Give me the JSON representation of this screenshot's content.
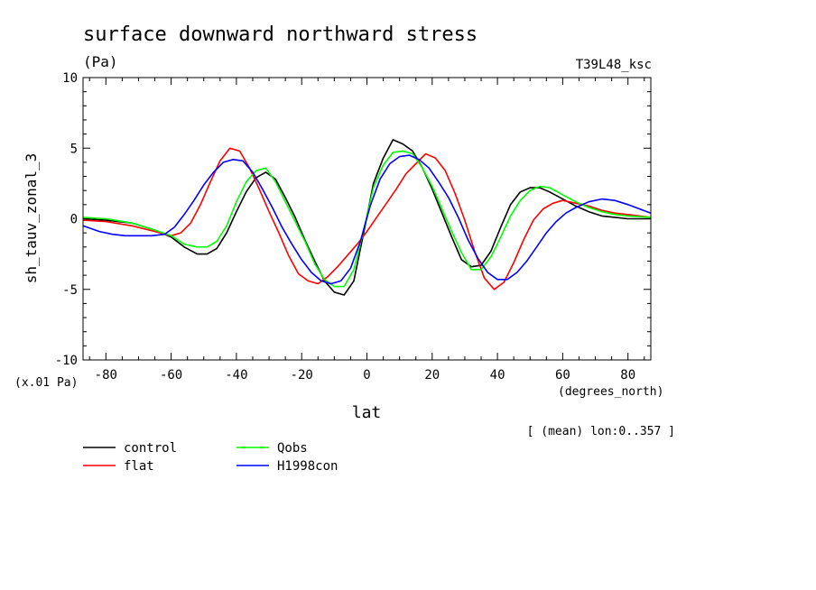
{
  "chart_data": {
    "type": "line",
    "title": "surface downward northward stress",
    "subtitle": "(Pa)",
    "run_label": "T39L48_ksc",
    "xlabel": "lat",
    "x_units": "(degrees_north)",
    "ylabel": "sh_tauv_zonal_3",
    "y_units": "(x.01 Pa)",
    "averaging_note": "[ (mean) lon:0..357 ]",
    "xlim": [
      -87,
      87
    ],
    "ylim": [
      -10,
      10
    ],
    "x_ticks": [
      -80,
      -60,
      -40,
      -20,
      0,
      20,
      40,
      60,
      80
    ],
    "y_ticks": [
      -10,
      -5,
      0,
      5,
      10
    ],
    "x_tick_labels": [
      "-80",
      "-60",
      "-40",
      "-20",
      "0",
      "20",
      "40",
      "60",
      "80"
    ],
    "y_tick_labels": [
      "-10",
      "-5",
      "0",
      "5",
      "10"
    ],
    "grid": false,
    "legend_placement": "bottom",
    "series": [
      {
        "name": "control",
        "color": "#000000",
        "x": [
          -87,
          -80,
          -72,
          -65,
          -60,
          -56,
          -52,
          -49,
          -46,
          -43,
          -40,
          -37,
          -34,
          -31,
          -28,
          -25,
          -22,
          -19,
          -16,
          -13,
          -10,
          -7,
          -4,
          -1,
          2,
          5,
          8,
          11,
          14,
          17,
          20,
          23,
          26,
          29,
          32,
          35,
          38,
          41,
          44,
          47,
          50,
          53,
          56,
          60,
          64,
          68,
          72,
          76,
          80,
          87
        ],
        "y": [
          0.0,
          -0.1,
          -0.3,
          -0.8,
          -1.3,
          -2.0,
          -2.5,
          -2.5,
          -2.1,
          -1.0,
          0.5,
          1.9,
          2.9,
          3.3,
          2.8,
          1.5,
          0.1,
          -1.5,
          -3.0,
          -4.4,
          -5.2,
          -5.4,
          -4.4,
          -1.0,
          2.5,
          4.3,
          5.6,
          5.3,
          4.8,
          3.6,
          2.1,
          0.4,
          -1.3,
          -2.9,
          -3.4,
          -3.3,
          -2.3,
          -0.6,
          1.0,
          1.9,
          2.2,
          2.2,
          1.9,
          1.4,
          0.9,
          0.5,
          0.2,
          0.1,
          0.0,
          0.0
        ]
      },
      {
        "name": "flat",
        "color": "#ff0000",
        "x": [
          -87,
          -80,
          -72,
          -65,
          -60,
          -57,
          -54,
          -51,
          -48,
          -45,
          -42,
          -39,
          -36,
          -33,
          -30,
          -27,
          -24,
          -21,
          -18,
          -15,
          -12,
          -9,
          -6,
          -3,
          0,
          3,
          6,
          9,
          12,
          15,
          18,
          21,
          24,
          27,
          30,
          33,
          36,
          39,
          42,
          45,
          48,
          51,
          54,
          57,
          60,
          64,
          68,
          72,
          76,
          80,
          87
        ],
        "y": [
          -0.1,
          -0.2,
          -0.5,
          -0.9,
          -1.2,
          -1.0,
          -0.3,
          1.0,
          2.6,
          4.1,
          5.0,
          4.8,
          3.6,
          2.1,
          0.5,
          -1.0,
          -2.6,
          -3.9,
          -4.4,
          -4.6,
          -4.1,
          -3.4,
          -2.6,
          -1.8,
          -0.9,
          0.1,
          1.1,
          2.1,
          3.2,
          3.9,
          4.6,
          4.3,
          3.4,
          1.8,
          -0.1,
          -2.3,
          -4.2,
          -5.0,
          -4.5,
          -3.1,
          -1.5,
          -0.1,
          0.7,
          1.1,
          1.3,
          1.1,
          0.9,
          0.6,
          0.4,
          0.3,
          0.1
        ]
      },
      {
        "name": "Qobs",
        "color": "#00ff00",
        "x": [
          -87,
          -80,
          -72,
          -65,
          -60,
          -56,
          -52,
          -49,
          -46,
          -43,
          -40,
          -37,
          -34,
          -31,
          -28,
          -25,
          -22,
          -19,
          -16,
          -13,
          -10,
          -7,
          -4,
          -1,
          2,
          5,
          8,
          11,
          14,
          17,
          20,
          23,
          26,
          29,
          32,
          35,
          38,
          41,
          44,
          47,
          50,
          53,
          56,
          60,
          64,
          68,
          72,
          76,
          80,
          87
        ],
        "y": [
          0.1,
          0.0,
          -0.3,
          -0.8,
          -1.2,
          -1.8,
          -2.0,
          -2.0,
          -1.6,
          -0.5,
          1.2,
          2.6,
          3.4,
          3.6,
          2.6,
          1.2,
          -0.2,
          -1.6,
          -3.2,
          -4.3,
          -4.8,
          -4.8,
          -3.6,
          -0.8,
          2.2,
          3.8,
          4.7,
          4.8,
          4.6,
          3.6,
          2.3,
          0.7,
          -0.9,
          -2.4,
          -3.6,
          -3.6,
          -2.7,
          -1.3,
          0.2,
          1.3,
          2.0,
          2.3,
          2.2,
          1.7,
          1.2,
          0.8,
          0.5,
          0.3,
          0.2,
          0.1
        ]
      },
      {
        "name": "H1998con",
        "color": "#0000ff",
        "x": [
          -87,
          -82,
          -78,
          -74,
          -70,
          -66,
          -62,
          -59,
          -56,
          -53,
          -50,
          -47,
          -44,
          -41,
          -38,
          -35,
          -32,
          -29,
          -26,
          -23,
          -20,
          -17,
          -14,
          -11,
          -8,
          -5,
          -2,
          1,
          4,
          7,
          10,
          13,
          16,
          19,
          22,
          25,
          28,
          31,
          34,
          37,
          40,
          43,
          46,
          49,
          52,
          55,
          58,
          61,
          64,
          68,
          72,
          76,
          80,
          87
        ],
        "y": [
          -0.5,
          -0.9,
          -1.1,
          -1.2,
          -1.2,
          -1.2,
          -1.1,
          -0.6,
          0.3,
          1.3,
          2.4,
          3.3,
          4.0,
          4.2,
          4.1,
          3.3,
          2.1,
          0.8,
          -0.6,
          -1.8,
          -2.9,
          -3.8,
          -4.4,
          -4.6,
          -4.4,
          -3.5,
          -1.6,
          0.9,
          2.8,
          3.9,
          4.4,
          4.5,
          4.2,
          3.6,
          2.6,
          1.5,
          0.1,
          -1.5,
          -2.8,
          -3.8,
          -4.3,
          -4.3,
          -3.8,
          -3.0,
          -2.0,
          -1.0,
          -0.2,
          0.4,
          0.8,
          1.2,
          1.4,
          1.3,
          1.0,
          0.4
        ]
      }
    ]
  }
}
